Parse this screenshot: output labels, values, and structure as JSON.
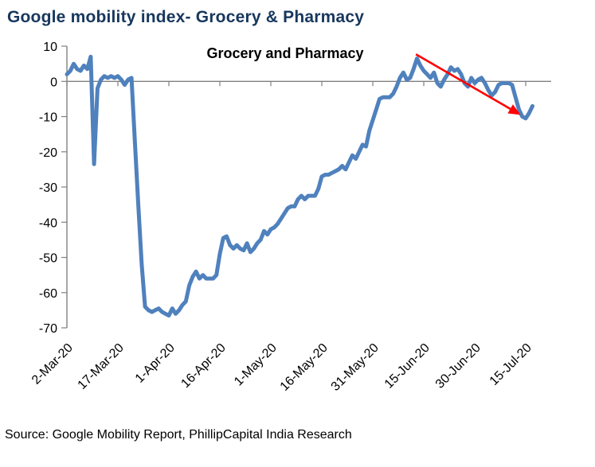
{
  "header": {
    "title": "Google mobility index- Grocery & Pharmacy"
  },
  "footer": {
    "source": "Source: Google Mobility Report, PhillipCapital India Research"
  },
  "colors": {
    "title": "#17375E",
    "line": "#4F81BD",
    "axis": "#808080",
    "arrow": "#FF0000",
    "text": "#000000",
    "background": "#FFFFFF"
  },
  "chart_data": {
    "type": "line",
    "title": "Grocery and Pharmacy",
    "xlabel": "",
    "ylabel": "",
    "ylim": [
      -70,
      10
    ],
    "y_ticks": [
      10,
      0,
      -10,
      -20,
      -30,
      -40,
      -50,
      -60,
      -70
    ],
    "grid": "zero-line-only",
    "legend": "none",
    "x_tick_labels": [
      "2-Mar-20",
      "17-Mar-20",
      "1-Apr-20",
      "16-Apr-20",
      "1-May-20",
      "16-May-20",
      "31-May-20",
      "15-Jun-20",
      "30-Jun-20",
      "15-Jul-20"
    ],
    "x_tick_days": [
      0,
      15,
      30,
      45,
      60,
      75,
      90,
      105,
      120,
      135
    ],
    "series": [
      {
        "name": "Grocery and Pharmacy",
        "start_date": "2-Mar-20",
        "end_date": "17-Jul-20",
        "frequency": "daily",
        "values": [
          2,
          3,
          5,
          3.5,
          3,
          4.5,
          3.5,
          7,
          -23.5,
          -2,
          0.5,
          1.5,
          1,
          1.5,
          1,
          1.5,
          0.5,
          -1,
          0.5,
          1,
          -17,
          -35,
          -52,
          -64,
          -65,
          -65.5,
          -65,
          -64.5,
          -65.5,
          -66,
          -66.5,
          -64.5,
          -66,
          -65,
          -63.5,
          -62.5,
          -58,
          -55.5,
          -54,
          -56,
          -55,
          -56,
          -56,
          -56,
          -55,
          -49,
          -44.5,
          -44,
          -46.5,
          -47.5,
          -46.5,
          -47.5,
          -48,
          -46,
          -48.5,
          -47.5,
          -46,
          -45,
          -42.5,
          -43.5,
          -42,
          -41.5,
          -40.5,
          -39,
          -37.5,
          -36,
          -35.5,
          -35.5,
          -33.5,
          -32.5,
          -33.5,
          -32.5,
          -32.5,
          -32.5,
          -30.5,
          -27,
          -26.5,
          -26.5,
          -26,
          -25.5,
          -25,
          -24,
          -25,
          -23,
          -21,
          -22,
          -20,
          -18,
          -18.5,
          -14,
          -11,
          -8,
          -5,
          -4.5,
          -4.5,
          -4.5,
          -3.5,
          -1.5,
          1,
          2.5,
          0.5,
          1,
          3.5,
          6.5,
          4.5,
          3,
          2,
          1,
          2.5,
          -0.5,
          -1.5,
          0.5,
          2,
          4,
          3,
          3.5,
          2,
          -0.5,
          -1.5,
          1,
          -0.5,
          0.5,
          1,
          -0.5,
          -2.5,
          -4,
          -3,
          -1,
          -0.5,
          -0.5,
          -0.5,
          -1,
          -4.5,
          -8,
          -10,
          -10.5,
          -9,
          -7
        ]
      }
    ],
    "annotation_arrow": {
      "description": "red downward trend arrow",
      "from_day": 102.7,
      "from_value": 7.7,
      "to_day": 133.5,
      "to_value": -9.5
    }
  }
}
